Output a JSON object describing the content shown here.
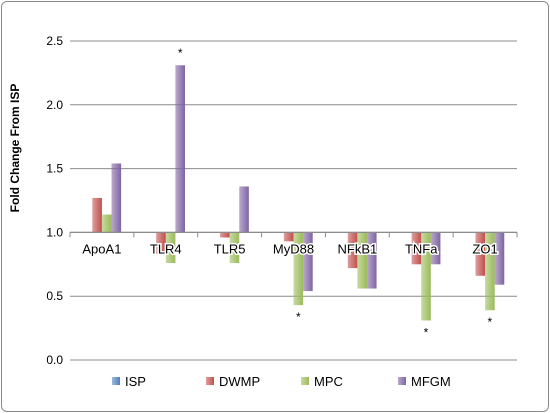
{
  "chart_data": {
    "type": "bar",
    "title": "",
    "xlabel": "",
    "ylabel": "Fold Change From ISP",
    "ylim": [
      0,
      2.5
    ],
    "yticks": [
      "0.0",
      "0.5",
      "1.0",
      "1.5",
      "2.0",
      "2.5"
    ],
    "baseline": 1.0,
    "grid": true,
    "legend": "bottom",
    "categories": [
      "ApoA1",
      "TLR4",
      "TLR5",
      "MyD88",
      "NFkB1",
      "TNFa",
      "ZO1"
    ],
    "series": [
      {
        "name": "ISP",
        "color": "#4f81bd",
        "values": [
          1.0,
          1.0,
          1.0,
          1.0,
          1.0,
          1.0,
          1.0
        ]
      },
      {
        "name": "DWMP",
        "color": "#c0504d",
        "values": [
          1.27,
          0.83,
          0.96,
          0.93,
          0.72,
          0.75,
          0.66
        ]
      },
      {
        "name": "MPC",
        "color": "#9bbb59",
        "values": [
          1.14,
          0.76,
          0.76,
          0.43,
          0.56,
          0.31,
          0.39
        ]
      },
      {
        "name": "MFGM",
        "color": "#8064a2",
        "values": [
          1.54,
          2.31,
          1.36,
          0.54,
          0.56,
          0.75,
          0.59
        ]
      }
    ],
    "significance": [
      {
        "category": "TLR4",
        "series": "MFGM",
        "marker": "*"
      },
      {
        "category": "MyD88",
        "series": "MPC",
        "marker": "*"
      },
      {
        "category": "TNFa",
        "series": "MPC",
        "marker": "*"
      },
      {
        "category": "ZO1",
        "series": "MPC",
        "marker": "*"
      }
    ]
  }
}
